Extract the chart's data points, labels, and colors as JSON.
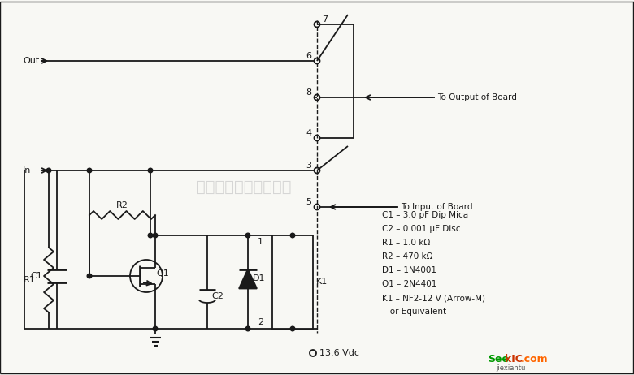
{
  "bg_color": "#f8f8f4",
  "line_color": "#1a1a1a",
  "text_color": "#1a1a1a",
  "watermark_text": "杭州将睿科技有限公司",
  "watermark_color": "#c8c8c8",
  "component_list": [
    "C1 – 3.0 pF Dip Mica",
    "C2 – 0.001 μF Disc",
    "R1 – 1.0 kΩ",
    "R2 – 470 kΩ",
    "D1 – 1N4001",
    "Q1 – 2N4401",
    "K1 – NF2-12 V (Arrow-M)",
    "   or Equivalent"
  ],
  "voltage_label": "13.6 Vdc",
  "out_label": "Out",
  "in_label": "In",
  "to_output_label": "To Output of Board",
  "to_input_label": "To Input of Board",
  "sub_text": "jiexiantu"
}
